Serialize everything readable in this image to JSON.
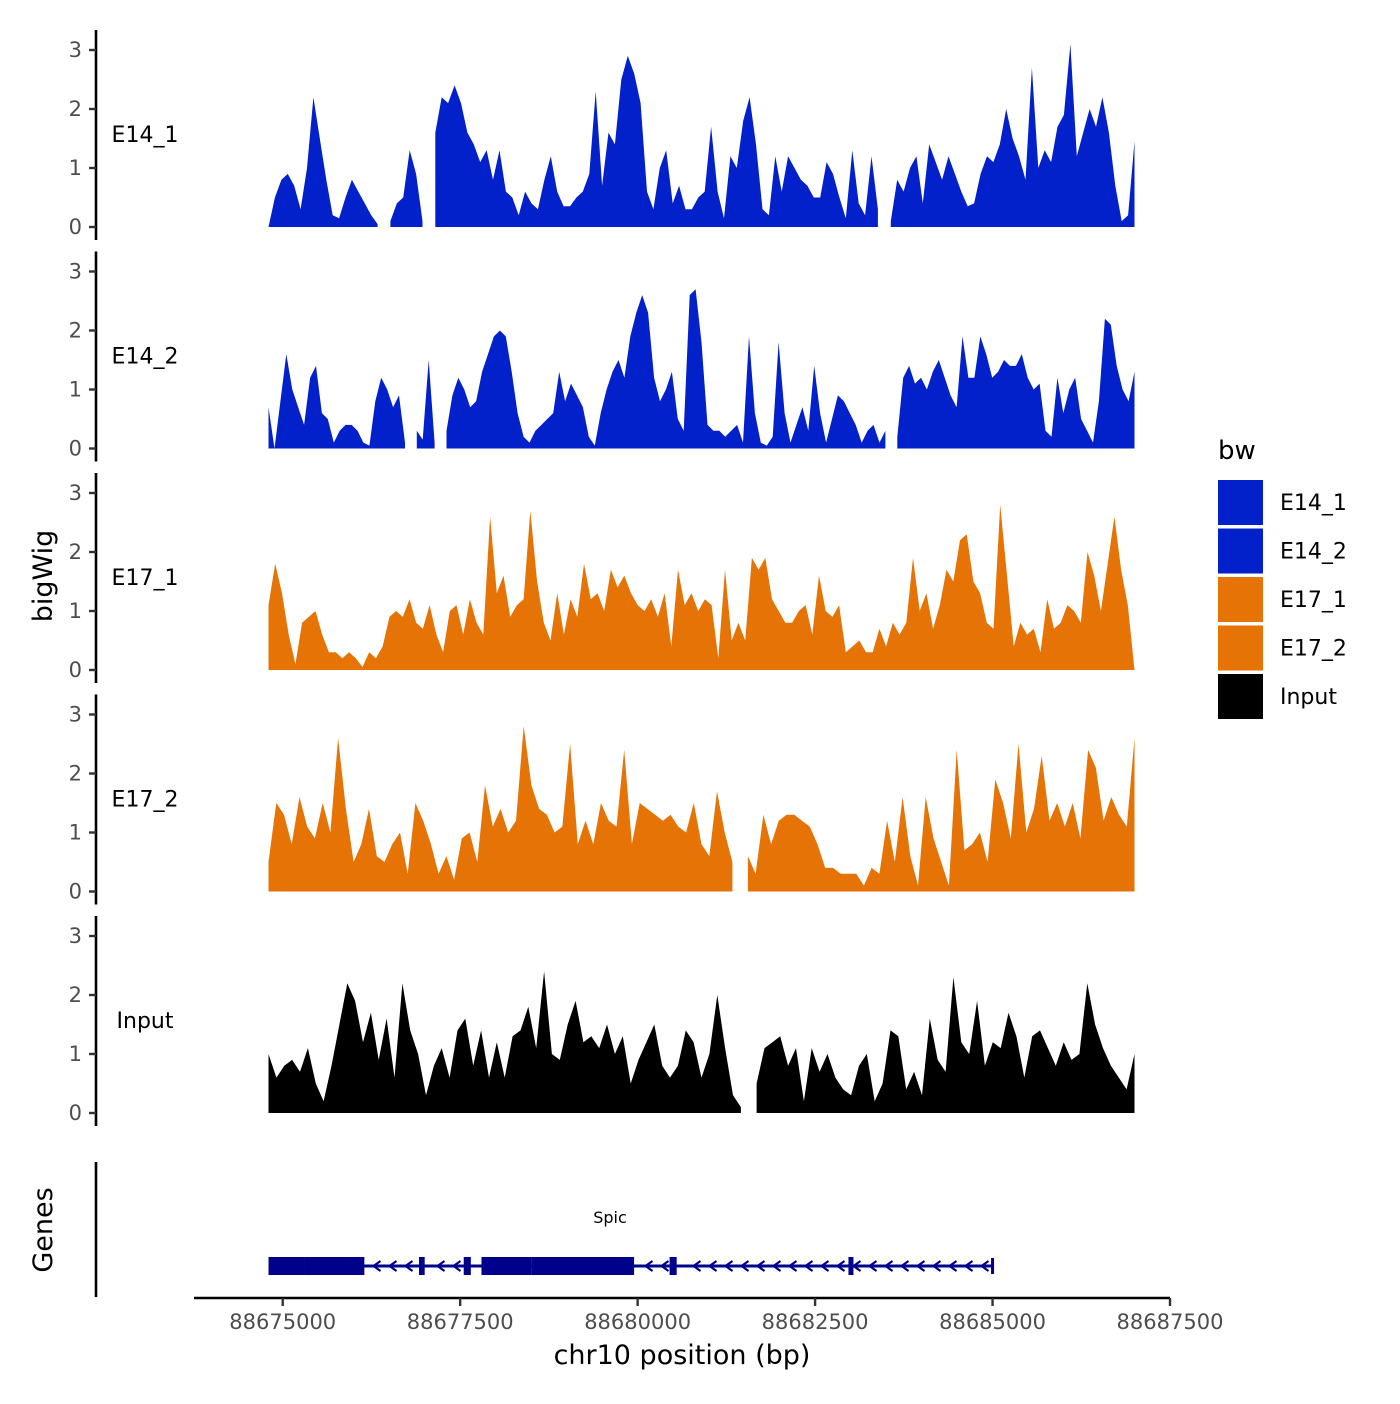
{
  "chart_data": {
    "type": "area",
    "title": "",
    "ylabel": "bigWig",
    "xlabel": "chr10 position (bp)",
    "xlim": [
      88673750,
      88687500
    ],
    "x_ticks": [
      88675000,
      88677500,
      88680000,
      88682500,
      88685000,
      88687500
    ],
    "x_tick_labels": [
      "88675000",
      "88677500",
      "88680000",
      "88682500",
      "88685000",
      "88687500"
    ],
    "ylim": [
      0,
      3.3
    ],
    "y_ticks": [
      0,
      1,
      2,
      3
    ],
    "y_tick_labels": [
      "0",
      "1",
      "2",
      "3"
    ],
    "region": [
      88674800,
      88687000
    ],
    "legend": {
      "title": "bw",
      "position": "right",
      "entries": [
        {
          "label": "E14_1",
          "color": "#0321CB"
        },
        {
          "label": "E14_2",
          "color": "#0321CB"
        },
        {
          "label": "E17_1",
          "color": "#E57305"
        },
        {
          "label": "E17_2",
          "color": "#E57305"
        },
        {
          "label": "Input",
          "color": "#000000"
        }
      ]
    },
    "series": [
      {
        "name": "E14_1",
        "color": "#0321CB",
        "values": [
          0,
          0.5,
          0.8,
          0.9,
          0.7,
          0.3,
          1.0,
          2.2,
          1.5,
          0.8,
          0.2,
          0.15,
          0.5,
          0.8,
          0.6,
          0.4,
          0.2,
          0.05,
          null,
          0.1,
          0.4,
          0.5,
          1.3,
          0.9,
          0.1,
          null,
          1.6,
          2.2,
          2.1,
          2.4,
          2.1,
          1.6,
          1.4,
          1.1,
          1.3,
          0.8,
          1.3,
          0.6,
          0.5,
          0.2,
          0.6,
          0.4,
          0.3,
          0.8,
          1.2,
          0.6,
          0.35,
          0.35,
          0.5,
          0.6,
          0.9,
          2.3,
          0.7,
          1.6,
          1.4,
          2.5,
          2.9,
          2.6,
          2.1,
          0.6,
          0.3,
          1.0,
          1.3,
          0.4,
          0.7,
          0.3,
          0.3,
          0.5,
          0.6,
          1.7,
          0.6,
          0.15,
          1.2,
          1.0,
          1.8,
          2.2,
          1.4,
          0.3,
          0.2,
          1.2,
          0.6,
          1.2,
          1.0,
          0.8,
          0.7,
          0.5,
          0.5,
          1.1,
          0.9,
          0.5,
          0.15,
          1.3,
          0.4,
          0.2,
          1.2,
          0.3,
          null,
          0.1,
          0.8,
          0.6,
          1.0,
          1.2,
          0.4,
          1.4,
          1.1,
          0.8,
          1.2,
          0.9,
          0.6,
          0.35,
          0.4,
          0.9,
          1.2,
          1.1,
          1.4,
          2.0,
          1.5,
          1.2,
          0.8,
          2.7,
          1.0,
          1.3,
          1.1,
          1.7,
          1.9,
          3.1,
          1.2,
          1.6,
          2.0,
          1.7,
          2.2,
          1.6,
          0.7,
          0.1,
          0.2,
          1.45
        ]
      },
      {
        "name": "E14_2",
        "color": "#0321CB",
        "values": [
          0.7,
          0,
          0.8,
          1.6,
          1.0,
          0.7,
          0.4,
          1.2,
          1.4,
          0.6,
          0.5,
          0.1,
          0.3,
          0.4,
          0.4,
          0.3,
          0.1,
          0.05,
          0.8,
          1.2,
          1.0,
          0.7,
          0.9,
          0.1,
          null,
          0.3,
          0.15,
          1.5,
          0.1,
          null,
          0.3,
          0.9,
          1.2,
          1.0,
          0.7,
          0.8,
          1.3,
          1.6,
          1.9,
          2.0,
          1.9,
          1.3,
          0.6,
          0.2,
          0.1,
          0.3,
          0.4,
          0.5,
          0.6,
          1.3,
          0.8,
          1.1,
          0.9,
          0.7,
          0.2,
          0.05,
          0.6,
          1.0,
          1.3,
          1.5,
          1.2,
          1.9,
          2.3,
          2.6,
          2.3,
          1.2,
          0.8,
          1.0,
          1.3,
          0.5,
          0.3,
          2.6,
          2.7,
          1.8,
          0.4,
          0.3,
          0.3,
          0.2,
          0.3,
          0.4,
          0.1,
          1.9,
          0.6,
          0.1,
          0.05,
          0.2,
          1.8,
          0.6,
          0.1,
          0.4,
          0.7,
          0.3,
          1.4,
          0.6,
          0.1,
          0.5,
          0.9,
          0.8,
          0.6,
          0.4,
          0.1,
          0.3,
          0.4,
          0.1,
          0.3,
          null,
          0.2,
          1.2,
          1.4,
          1.1,
          1.2,
          1.0,
          1.3,
          1.5,
          1.2,
          0.9,
          0.7,
          1.9,
          1.2,
          1.2,
          1.9,
          1.6,
          1.2,
          1.3,
          1.5,
          1.4,
          1.4,
          1.6,
          1.2,
          1.0,
          1.1,
          0.3,
          0.2,
          1.2,
          0.6,
          1.0,
          1.2,
          0.5,
          0.3,
          0.1,
          0.8,
          2.2,
          2.1,
          1.4,
          1.0,
          0.8,
          1.3
        ]
      },
      {
        "name": "E17_1",
        "color": "#E57305",
        "values": [
          1.1,
          1.8,
          1.3,
          0.6,
          0.1,
          0.8,
          0.9,
          1.0,
          0.6,
          0.3,
          0.3,
          0.2,
          0.3,
          0.2,
          0.05,
          0.3,
          0.2,
          0.4,
          0.9,
          1.0,
          0.9,
          1.2,
          0.8,
          0.7,
          1.1,
          0.6,
          0.3,
          1.0,
          1.1,
          0.6,
          1.2,
          0.8,
          0.6,
          2.6,
          1.3,
          1.6,
          0.9,
          1.1,
          1.2,
          2.7,
          1.5,
          0.8,
          0.5,
          1.3,
          0.6,
          1.2,
          0.9,
          1.8,
          1.2,
          1.3,
          1.0,
          1.7,
          1.4,
          1.6,
          1.3,
          1.1,
          1.0,
          1.2,
          0.9,
          1.3,
          0.4,
          1.7,
          1.1,
          1.3,
          1.0,
          1.2,
          1.1,
          0.2,
          1.7,
          0.5,
          0.8,
          0.5,
          1.9,
          1.7,
          1.9,
          1.2,
          1.0,
          0.8,
          0.8,
          1.0,
          1.1,
          0.6,
          1.6,
          1.0,
          0.9,
          1.1,
          0.3,
          0.4,
          0.5,
          0.3,
          0.3,
          0.7,
          0.4,
          0.8,
          0.6,
          0.8,
          1.9,
          1.0,
          1.3,
          0.7,
          1.1,
          1.7,
          1.5,
          2.2,
          2.3,
          1.5,
          1.3,
          0.8,
          0.7,
          2.8,
          1.6,
          0.4,
          0.8,
          0.6,
          0.7,
          0.3,
          1.2,
          0.7,
          0.8,
          1.1,
          1.0,
          0.8,
          2.0,
          1.6,
          1.0,
          1.8,
          2.6,
          1.7,
          1.1,
          0
        ]
      },
      {
        "name": "E17_2",
        "color": "#E57305",
        "values": [
          0.5,
          1.5,
          1.3,
          0.8,
          1.6,
          1.1,
          0.9,
          1.5,
          1.0,
          2.6,
          1.4,
          0.5,
          0.8,
          1.4,
          0.6,
          0.5,
          0.8,
          1.0,
          0.3,
          1.5,
          1.2,
          0.8,
          0.3,
          0.6,
          0.2,
          0.9,
          1.0,
          0.5,
          1.8,
          1.1,
          1.4,
          1.0,
          1.2,
          2.8,
          1.8,
          1.4,
          1.3,
          1.0,
          1.1,
          2.5,
          0.8,
          1.2,
          0.8,
          1.5,
          1.2,
          1.1,
          2.4,
          0.8,
          1.5,
          1.4,
          1.3,
          1.2,
          1.3,
          1.1,
          1.0,
          1.5,
          0.8,
          0.6,
          1.7,
          1.0,
          0.5,
          null,
          0.6,
          0.3,
          1.3,
          0.8,
          1.2,
          1.3,
          1.3,
          1.2,
          1.1,
          0.8,
          0.4,
          0.4,
          0.3,
          0.3,
          0.3,
          0.1,
          0.4,
          0.3,
          1.2,
          0.5,
          1.6,
          0.6,
          0.1,
          1.6,
          0.9,
          0.5,
          0.1,
          2.4,
          0.7,
          0.8,
          1.0,
          0.5,
          1.9,
          1.5,
          0.9,
          2.5,
          1.0,
          1.4,
          2.3,
          1.2,
          1.5,
          1.1,
          1.5,
          0.9,
          2.4,
          2.1,
          1.2,
          1.6,
          1.3,
          1.1,
          2.6
        ]
      },
      {
        "name": "Input",
        "color": "#000000",
        "values": [
          1.0,
          0.6,
          0.8,
          0.9,
          0.7,
          1.1,
          0.5,
          0.2,
          0.8,
          1.5,
          2.2,
          1.9,
          1.2,
          1.7,
          0.9,
          1.6,
          0.6,
          2.2,
          1.4,
          1.0,
          0.3,
          0.8,
          1.1,
          0.6,
          1.4,
          1.6,
          0.8,
          1.4,
          0.6,
          1.2,
          0.6,
          1.3,
          1.4,
          1.8,
          1.1,
          2.4,
          1.0,
          0.9,
          1.5,
          1.9,
          1.2,
          1.3,
          1.1,
          1.5,
          1.0,
          1.3,
          0.5,
          0.9,
          1.2,
          1.5,
          0.8,
          0.6,
          0.8,
          1.4,
          1.2,
          0.6,
          1.0,
          2.0,
          1.1,
          0.3,
          0.1,
          null,
          0.5,
          1.1,
          1.2,
          1.3,
          0.8,
          1.1,
          0.2,
          1.1,
          0.7,
          1.0,
          0.6,
          0.4,
          0.3,
          0.8,
          1.0,
          0.2,
          0.5,
          1.4,
          1.3,
          0.4,
          0.7,
          0.3,
          1.6,
          0.9,
          0.7,
          2.3,
          1.2,
          1.0,
          1.9,
          0.8,
          1.2,
          1.1,
          1.7,
          1.3,
          0.6,
          1.3,
          1.4,
          1.1,
          0.8,
          1.2,
          0.9,
          1.0,
          2.2,
          1.5,
          1.1,
          0.8,
          0.6,
          0.4,
          1.0
        ]
      }
    ],
    "gene_track": {
      "label": "Genes",
      "gene_name": "Spic",
      "color": "#00008B",
      "strand": "-",
      "start": 88674800,
      "end": 88685000,
      "exons": [
        [
          88674800,
          88675300
        ],
        [
          88675300,
          88676150
        ],
        [
          88676920,
          88677000
        ],
        [
          88677550,
          88677650
        ],
        [
          88677800,
          88678500
        ],
        [
          88678500,
          88679950
        ],
        [
          88680450,
          88680550
        ],
        [
          88682970,
          88683000
        ]
      ]
    }
  }
}
